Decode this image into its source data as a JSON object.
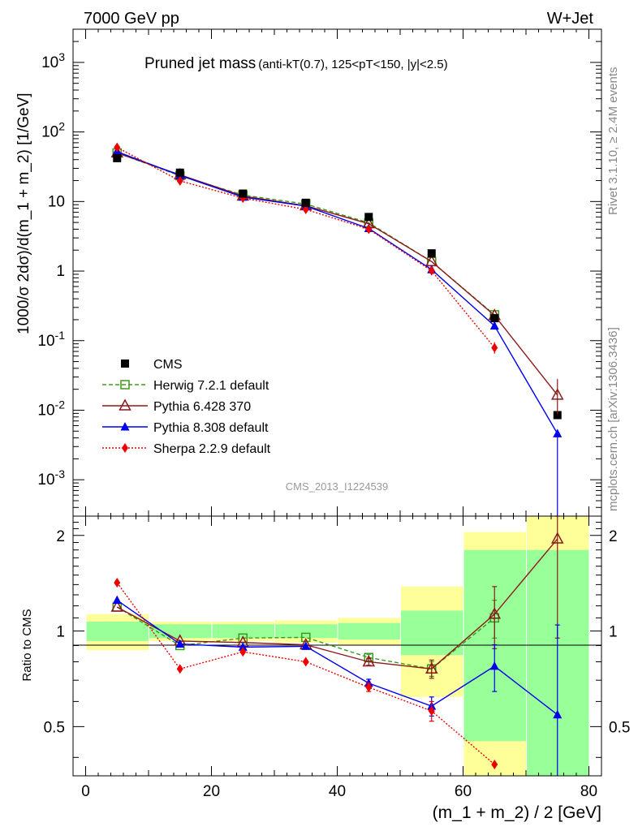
{
  "header": {
    "left": "7000 GeV pp",
    "right": "W+Jet"
  },
  "side_labels": {
    "rivet": "Rivet 3.1.10, ≥ 2.4M events",
    "mcplots": "mcplots.cern.ch [arXiv:1306.3436]"
  },
  "title": {
    "main": "Pruned jet mass",
    "sub": "(anti-kT(0.7), 125<pT<150, |y|<2.5)"
  },
  "watermark": "CMS_2013_I1224539",
  "colors": {
    "cms": "#000000",
    "herwig": "#3a9a1a",
    "pythia6": "#8b1a1a",
    "pythia8": "#0000ee",
    "sherpa": "#ee0000",
    "band_inner": "#99ff99",
    "band_outer": "#ffff99"
  },
  "chart_data": {
    "type": "scatter",
    "title": "Pruned jet mass (anti-kT(0.7), 125<pT<150, |y|<2.5)",
    "xlabel": "(m_1 + m_2) / 2 [GeV]",
    "ylabel": "1000/σ 2dσ)/d(m_1 + m_2) [1/GeV]",
    "yscale": "log",
    "xlim": [
      -2,
      82
    ],
    "ylim": [
      0.0003,
      3000
    ],
    "x_ticks": [
      "0",
      "20",
      "40",
      "60",
      "80"
    ],
    "y_ticks": [
      "10^-3",
      "10^-2",
      "10^-1",
      "1",
      "10",
      "10^2",
      "10^3"
    ],
    "legend_position": "middle-left",
    "x": [
      5,
      15,
      25,
      35,
      45,
      55,
      65,
      75
    ],
    "bins": [
      [
        0,
        10
      ],
      [
        10,
        20
      ],
      [
        20,
        30
      ],
      [
        30,
        40
      ],
      [
        40,
        50
      ],
      [
        50,
        60
      ],
      [
        60,
        70
      ],
      [
        70,
        80
      ]
    ],
    "series": [
      {
        "name": "CMS",
        "key": "cms",
        "style": "solid",
        "marker": "square",
        "values": [
          42,
          26,
          13,
          9.6,
          6.0,
          1.8,
          0.21,
          0.0085
        ]
      },
      {
        "name": "Herwig 7.2.1 default",
        "key": "herwig",
        "style": "dashed",
        "marker": "open-square",
        "values": [
          50,
          23.5,
          12.4,
          9.2,
          4.95,
          1.37,
          0.235,
          null
        ]
      },
      {
        "name": "Pythia 6.428 370",
        "key": "pythia6",
        "style": "solid",
        "marker": "open-triangle",
        "values": [
          50,
          24.2,
          12.0,
          8.7,
          4.8,
          1.37,
          0.23,
          0.0165
        ]
      },
      {
        "name": "Pythia 8.308 default",
        "key": "pythia8",
        "style": "solid",
        "marker": "triangle",
        "values": [
          52,
          23.7,
          11.6,
          8.6,
          4.1,
          1.05,
          0.163,
          0.0046
        ]
      },
      {
        "name": "Sherpa 2.2.9 default",
        "key": "sherpa",
        "style": "dotted",
        "marker": "diamond",
        "values": [
          60,
          19.8,
          11.2,
          7.7,
          4.0,
          1.01,
          0.079,
          null
        ]
      }
    ],
    "ratio": {
      "ylabel": "Ratio to CMS",
      "ylim": [
        0.35,
        2.3
      ],
      "y_ticks": [
        "0.5",
        "1",
        "2"
      ],
      "band_inner": [
        [
          0.93,
          1.07
        ],
        [
          0.95,
          1.05
        ],
        [
          0.95,
          1.05
        ],
        [
          0.95,
          1.05
        ],
        [
          0.94,
          1.06
        ],
        [
          0.84,
          1.16
        ],
        [
          0.45,
          1.8
        ],
        [
          0.35,
          1.8
        ]
      ],
      "band_outer": [
        [
          0.87,
          1.13
        ],
        [
          0.93,
          1.07
        ],
        [
          0.93,
          1.07
        ],
        [
          0.92,
          1.08
        ],
        [
          0.9,
          1.1
        ],
        [
          0.62,
          1.38
        ],
        [
          0.35,
          2.05
        ],
        [
          0.35,
          2.3
        ]
      ],
      "series": [
        {
          "key": "herwig",
          "values": [
            1.19,
            0.9,
            0.95,
            0.955,
            0.825,
            0.76,
            1.1,
            null
          ],
          "errors": [
            0,
            0,
            0,
            0,
            0.02,
            0.04,
            0.15,
            0
          ]
        },
        {
          "key": "pythia6",
          "values": [
            1.19,
            0.93,
            0.92,
            0.905,
            0.8,
            0.76,
            1.13,
            1.95
          ],
          "errors": [
            0,
            0,
            0,
            0,
            0.02,
            0.05,
            0.25,
            1.0
          ]
        },
        {
          "key": "pythia8",
          "values": [
            1.25,
            0.91,
            0.89,
            0.895,
            0.685,
            0.58,
            0.775,
            0.545
          ],
          "errors": [
            0,
            0,
            0,
            0,
            0.02,
            0.04,
            0.13,
            0.5
          ]
        },
        {
          "key": "sherpa",
          "values": [
            1.42,
            0.76,
            0.86,
            0.8,
            0.665,
            0.56,
            0.38,
            null
          ],
          "errors": [
            0,
            0,
            0,
            0,
            0.02,
            0.04,
            0,
            0
          ]
        }
      ]
    }
  }
}
